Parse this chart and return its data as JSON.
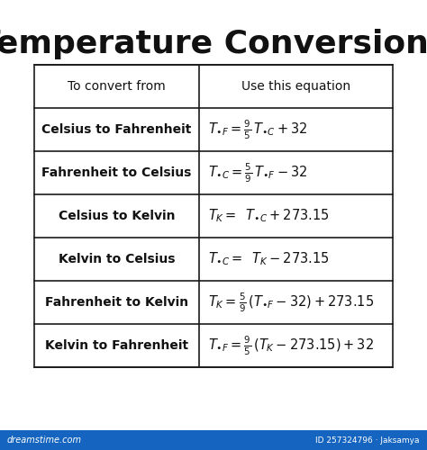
{
  "title": "Temperature Conversions",
  "title_fontsize": 26,
  "title_fontweight": "bold",
  "bg_color": "#ffffff",
  "table_border_color": "#1a1a1a",
  "header_row": [
    "To convert from",
    "Use this equation"
  ],
  "row_labels": [
    "Celsius to Fahrenheit",
    "Fahrenheit to Celsius",
    "Celsius to Kelvin",
    "Kelvin to Celsius",
    "Fahrenheit to Kelvin",
    "Kelvin to Fahrenheit"
  ],
  "row_formulas": [
    "$T_{\\bullet F} = \\frac{9}{5}\\, T_{\\bullet C} + 32$",
    "$T_{\\bullet C} = \\frac{5}{9}\\, T_{\\bullet F} - 32$",
    "$T_K =\\;\\; T_{\\bullet C} + 273.15$",
    "$T_{\\bullet C} =\\;\\; T_K - 273.15$",
    "$T_K = \\frac{5}{9}\\,( T_{\\bullet F} - 32) +273.15$",
    "$T_{\\bullet F} = \\frac{9}{5}\\,( T_K - 273.15) + 32$"
  ],
  "footer_color": "#1565c0",
  "footer_text_left": "dreamstime.com",
  "footer_text_right": "ID 257324796 · Jaksamya"
}
